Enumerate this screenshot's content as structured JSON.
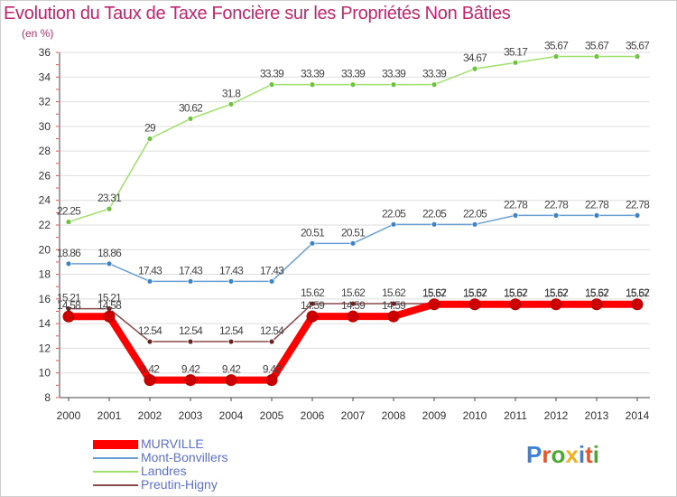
{
  "title": "Evolution du Taux de Taxe Foncière sur les Propriétés Non Bâties",
  "unit_label": "(en %)",
  "logo": {
    "text": "Proxiti",
    "letter_colors": [
      "#3d7fd9",
      "#e8552d",
      "#4ca733",
      "#f2b01e",
      "#3d7fd9",
      "#e8552d",
      "#4ca733"
    ]
  },
  "colors": {
    "title": "#c0266c",
    "axis": "#444444",
    "grid": "#dddddd",
    "tick_marks": "#e05050"
  },
  "chart_data": {
    "type": "line",
    "title": "Evolution du Taux de Taxe Foncière sur les Propriétés Non Bâties",
    "ylabel": "(en %)",
    "xlabel": "",
    "ylim": [
      8,
      36
    ],
    "yticks": [
      8,
      10,
      12,
      14,
      16,
      18,
      20,
      22,
      24,
      26,
      28,
      30,
      32,
      34,
      36
    ],
    "categories": [
      "2000",
      "2001",
      "2002",
      "2003",
      "2004",
      "2005",
      "2006",
      "2007",
      "2008",
      "2009",
      "2010",
      "2011",
      "2012",
      "2013",
      "2014"
    ],
    "series": [
      {
        "name": "MURVILLE",
        "color": "#ff0000",
        "marker_color": "#cc0000",
        "values": [
          14.58,
          14.58,
          9.42,
          9.42,
          9.42,
          9.42,
          14.59,
          14.59,
          14.59,
          15.57,
          15.57,
          15.57,
          15.57,
          15.57,
          15.57
        ],
        "labels": [
          "14.58",
          "14.58",
          "9.42",
          "9.42",
          "9.42",
          "9.42",
          "14.59",
          "14.59",
          "14.59",
          "15.57",
          "15.57",
          "15.57",
          "15.57",
          "15.57",
          "15.57"
        ]
      },
      {
        "name": "Mont-Bonvillers",
        "color": "#6a9fd3",
        "marker_color": "#3f83c7",
        "values": [
          18.86,
          18.86,
          17.43,
          17.43,
          17.43,
          17.43,
          20.51,
          20.51,
          22.05,
          22.05,
          22.05,
          22.78,
          22.78,
          22.78,
          22.78
        ],
        "labels": [
          "18.86",
          "18.86",
          "17.43",
          "17.43",
          "17.43",
          "17.43",
          "20.51",
          "20.51",
          "22.05",
          "22.05",
          "22.05",
          "22.78",
          "22.78",
          "22.78",
          "22.78"
        ]
      },
      {
        "name": "Landres",
        "color": "#9fe06a",
        "marker_color": "#6cc43c",
        "values": [
          22.25,
          23.31,
          29,
          30.62,
          31.8,
          33.39,
          33.39,
          33.39,
          33.39,
          33.39,
          34.67,
          35.17,
          35.67,
          35.67,
          35.67
        ],
        "labels": [
          "22.25",
          "23.31",
          "29",
          "30.62",
          "31.8",
          "33.39",
          "33.39",
          "33.39",
          "33.39",
          "33.39",
          "34.67",
          "35.17",
          "35.67",
          "35.67",
          "35.67"
        ]
      },
      {
        "name": "Preutin-Higny",
        "color": "#8a4a4a",
        "marker_color": "#6b2222",
        "values": [
          15.21,
          15.21,
          12.54,
          12.54,
          12.54,
          12.54,
          15.62,
          15.62,
          15.62,
          15.62,
          15.62,
          15.62,
          15.62,
          15.62,
          15.62
        ],
        "labels": [
          "15.21",
          "15.21",
          "12.54",
          "12.54",
          "12.54",
          "12.54",
          "15.62",
          "15.62",
          "15.62",
          "15.62",
          "15.62",
          "15.62",
          "15.62",
          "15.62",
          "15.62"
        ]
      }
    ],
    "legend": {
      "position": "bottom-left"
    },
    "grid": true
  }
}
